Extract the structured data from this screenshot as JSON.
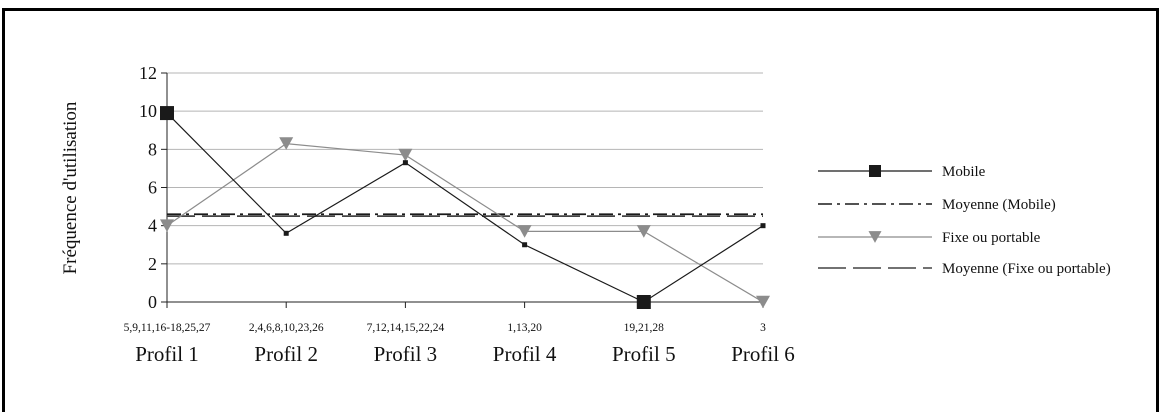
{
  "chart_data": {
    "type": "line",
    "ylabel": "Fréquence d'utilisation",
    "ylim": [
      0,
      12
    ],
    "yticks": [
      0,
      2,
      4,
      6,
      8,
      10,
      12
    ],
    "grid": true,
    "legend_position": "right",
    "categories": [
      "Profil 1",
      "Profil 2",
      "Profil 3",
      "Profil 4",
      "Profil 5",
      "Profil 6"
    ],
    "category_sublabels": [
      "5,9,11,16-18,25,27",
      "2,4,6,8,10,23,26",
      "7,12,14,15,22,24",
      "1,13,20",
      "19,21,28",
      "3"
    ],
    "series": [
      {
        "name": "Mobile",
        "values": [
          9.9,
          3.6,
          7.3,
          3.0,
          0.0,
          4.0
        ],
        "color": "#1a1a1a",
        "marker": "square",
        "marker_sizes": [
          "large",
          "small",
          "small",
          "small",
          "large",
          "small"
        ]
      },
      {
        "name": "Moyenne (Mobile)",
        "values": [
          4.6,
          4.6,
          4.6,
          4.6,
          4.6,
          4.6
        ],
        "color": "#1a1a1a",
        "style": "dash-dot"
      },
      {
        "name": "Fixe ou portable",
        "values": [
          4.0,
          8.3,
          7.7,
          3.7,
          3.7,
          0.0
        ],
        "color": "#8c8c8c",
        "marker": "triangle-down"
      },
      {
        "name": "Moyenne (Fixe ou portable)",
        "values": [
          4.5,
          4.5,
          4.5,
          4.5,
          4.5,
          4.5
        ],
        "color": "#444444",
        "style": "long-dash"
      }
    ]
  }
}
